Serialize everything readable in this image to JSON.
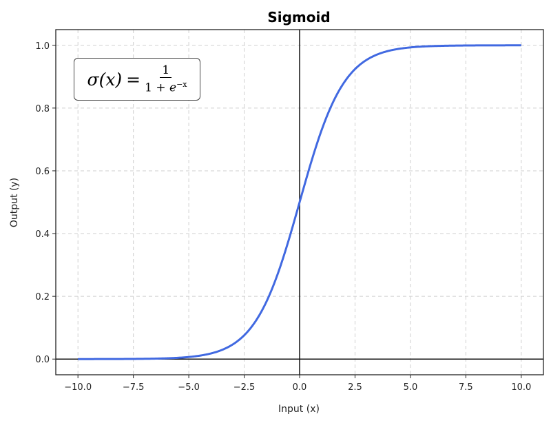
{
  "chart_data": {
    "type": "line",
    "title": "Sigmoid",
    "xlabel": "Input (x)",
    "ylabel": "Output (y)",
    "xlim": [
      -11,
      11
    ],
    "ylim": [
      -0.05,
      1.05
    ],
    "grid": true,
    "grid_style": "dashed",
    "legend": null,
    "x_ticks": [
      -10.0,
      -7.5,
      -5.0,
      -2.5,
      0.0,
      2.5,
      5.0,
      7.5,
      10.0
    ],
    "x_tick_labels": [
      "−10.0",
      "−7.5",
      "−5.0",
      "−2.5",
      "0.0",
      "2.5",
      "5.0",
      "7.5",
      "10.0"
    ],
    "y_ticks": [
      0.0,
      0.2,
      0.4,
      0.6,
      0.8,
      1.0
    ],
    "y_tick_labels": [
      "0.0",
      "0.2",
      "0.4",
      "0.6",
      "0.8",
      "1.0"
    ],
    "reference_lines": [
      {
        "axis": "x",
        "value": 0
      },
      {
        "axis": "y",
        "value": 0
      }
    ],
    "series": [
      {
        "name": "sigmoid",
        "color": "#4169E1",
        "function": "1/(1+exp(-x))",
        "x": [
          -10,
          -9,
          -8,
          -7,
          -6,
          -5,
          -4,
          -3,
          -2.5,
          -2,
          -1.5,
          -1,
          -0.5,
          0,
          0.5,
          1,
          1.5,
          2,
          2.5,
          3,
          4,
          5,
          6,
          7,
          8,
          9,
          10
        ],
        "y": [
          0.0,
          0.0001,
          0.0003,
          0.0009,
          0.0025,
          0.0067,
          0.018,
          0.0474,
          0.0759,
          0.1192,
          0.1824,
          0.2689,
          0.3775,
          0.5,
          0.6225,
          0.7311,
          0.8176,
          0.8808,
          0.9241,
          0.9526,
          0.982,
          0.9933,
          0.9975,
          0.9991,
          0.9997,
          0.9999,
          1.0
        ]
      }
    ],
    "annotation": {
      "lhs": "σ(x)",
      "equals": "=",
      "numerator": "1",
      "denominator_prefix": "1 + ",
      "denominator_base": "e",
      "denominator_exponent": "−x"
    }
  }
}
